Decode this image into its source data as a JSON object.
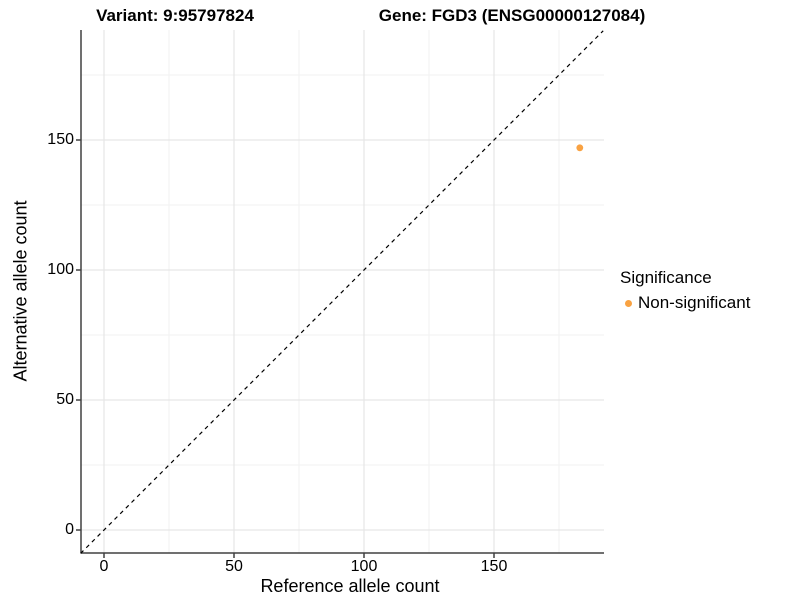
{
  "chart_data": {
    "type": "scatter",
    "title_left": "Variant: 9:95797824",
    "title_right": "Gene: FGD3 (ENSG00000127084)",
    "xlabel": "Reference allele count",
    "ylabel": "Alternative allele count",
    "x_ticks": [
      0,
      50,
      100,
      150
    ],
    "y_ticks": [
      0,
      50,
      100,
      150
    ],
    "minor_ticks": [
      25,
      75,
      125,
      175
    ],
    "xlim": [
      -9,
      192
    ],
    "ylim": [
      -9,
      192
    ],
    "grid": true,
    "points": [
      {
        "x": 183,
        "y": 147,
        "series": "Non-significant"
      }
    ],
    "reference_line": {
      "kind": "identity",
      "style": "dashed",
      "color": "#000000"
    },
    "legend": {
      "position": "right",
      "title": "Significance",
      "items": [
        {
          "label": "Non-significant",
          "color": "#F9A242"
        }
      ]
    },
    "colors": {
      "point": "#F9A242",
      "grid_major": "#E6E6E6",
      "grid_minor": "#F2F2F2",
      "axis_line": "#404040",
      "tick_mark": "#404040",
      "text": "#000000"
    }
  }
}
